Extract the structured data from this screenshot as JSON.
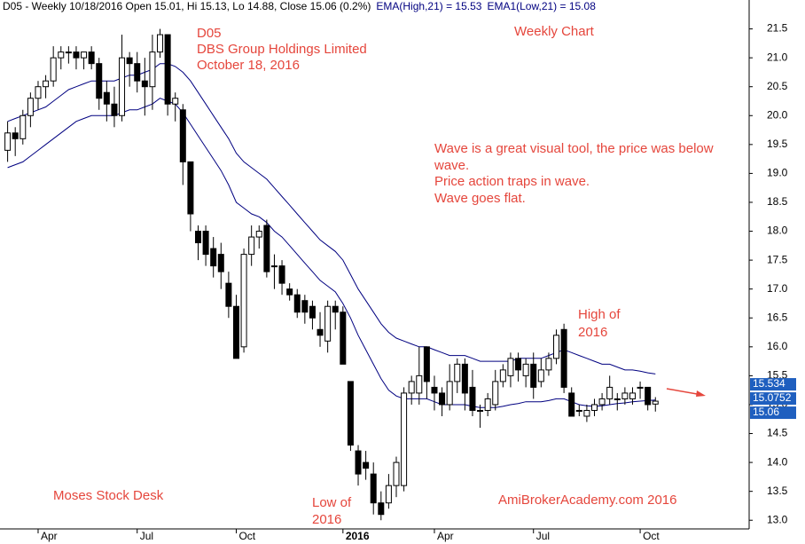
{
  "chart_data": {
    "type": "candlestick",
    "title": "D05 - Weekly 10/18/2016 Open 15.01, Hi 15.13, Lo 14.88, Close 15.06 (0.2%)",
    "ohlc": {
      "open": [
        19.4,
        19.7,
        19.6,
        20.0,
        20.3,
        20.5,
        20.6,
        21.0,
        21.1,
        21.1,
        21.0,
        21.1,
        20.9,
        20.4,
        20.2,
        20.0,
        21.0,
        20.9,
        20.6,
        20.5,
        21.1,
        21.4,
        20.2,
        20.1,
        19.2,
        18.0,
        18.0,
        17.7,
        17.6,
        17.1,
        16.7,
        16.0,
        17.6,
        17.9,
        18.1,
        17.4,
        17.4,
        17.0,
        16.9,
        16.8,
        16.7,
        16.3,
        16.1,
        16.7,
        16.6,
        15.4,
        14.2,
        14.0,
        13.8,
        13.3,
        13.3,
        13.6,
        13.6,
        15.2,
        15.2,
        16.0,
        15.3,
        15.2,
        15.0,
        15.4,
        15.7,
        15.3,
        14.9,
        14.9,
        15.0,
        15.4,
        15.5,
        15.8,
        15.5,
        15.7,
        15.4,
        15.6,
        15.8,
        16.3,
        15.2,
        14.9,
        14.8,
        14.9,
        15.0,
        15.1,
        15.1,
        15.1,
        15.1,
        15.3,
        15.3,
        15.01
      ],
      "high": [
        19.9,
        19.8,
        20.1,
        20.4,
        20.6,
        20.7,
        21.2,
        21.2,
        21.2,
        21.2,
        21.1,
        21.2,
        21.0,
        20.6,
        20.5,
        21.4,
        21.1,
        21.1,
        21.0,
        21.4,
        21.5,
        21.4,
        20.4,
        20.2,
        19.2,
        18.1,
        18.1,
        17.9,
        17.8,
        17.3,
        16.9,
        17.7,
        18.1,
        18.1,
        18.2,
        17.6,
        17.5,
        17.1,
        17.0,
        16.9,
        16.8,
        16.6,
        16.8,
        16.8,
        16.7,
        15.4,
        14.3,
        14.2,
        14.0,
        13.5,
        13.8,
        14.1,
        15.3,
        15.5,
        16.0,
        16.0,
        15.5,
        15.3,
        15.7,
        15.8,
        15.8,
        15.6,
        15.0,
        15.2,
        15.6,
        15.7,
        15.9,
        15.9,
        15.8,
        15.9,
        15.8,
        15.9,
        16.3,
        16.4,
        15.3,
        15.0,
        15.0,
        15.1,
        15.2,
        15.5,
        15.2,
        15.3,
        15.3,
        15.4,
        15.3,
        15.13
      ],
      "low": [
        19.2,
        19.3,
        19.5,
        19.8,
        20.1,
        20.3,
        20.5,
        20.8,
        20.9,
        20.8,
        20.8,
        20.8,
        20.1,
        19.9,
        19.8,
        19.9,
        20.5,
        20.4,
        20.0,
        20.1,
        21.0,
        20.0,
        19.9,
        18.8,
        18.0,
        17.5,
        17.4,
        17.2,
        17.0,
        16.5,
        15.8,
        15.9,
        17.4,
        17.7,
        17.2,
        17.0,
        16.9,
        16.8,
        16.5,
        16.4,
        16.3,
        16.0,
        15.9,
        16.3,
        15.7,
        14.2,
        13.6,
        13.7,
        13.1,
        13.0,
        13.2,
        13.4,
        13.5,
        15.0,
        15.0,
        15.1,
        14.9,
        14.8,
        14.9,
        15.2,
        14.9,
        14.8,
        14.6,
        14.8,
        14.9,
        15.3,
        15.3,
        15.4,
        15.3,
        15.1,
        15.3,
        15.5,
        15.7,
        15.2,
        14.8,
        14.8,
        14.7,
        14.8,
        14.9,
        15.0,
        14.9,
        15.0,
        15.0,
        15.1,
        14.9,
        14.88
      ],
      "close": [
        19.7,
        19.6,
        20.0,
        20.3,
        20.5,
        20.6,
        21.0,
        21.1,
        21.1,
        21.0,
        21.1,
        20.9,
        20.3,
        20.2,
        20.0,
        21.0,
        20.9,
        20.6,
        20.5,
        21.1,
        21.4,
        20.2,
        20.3,
        19.2,
        18.3,
        17.8,
        17.6,
        17.4,
        17.3,
        16.7,
        15.8,
        17.6,
        17.9,
        18.0,
        17.3,
        17.4,
        17.1,
        16.9,
        16.6,
        16.6,
        16.5,
        16.2,
        16.7,
        16.6,
        15.7,
        14.3,
        13.8,
        13.9,
        13.3,
        13.1,
        13.6,
        14.0,
        15.2,
        15.4,
        15.5,
        15.4,
        15.2,
        15.0,
        15.4,
        15.7,
        15.2,
        14.9,
        14.9,
        15.1,
        15.4,
        15.6,
        15.8,
        15.6,
        15.7,
        15.3,
        15.6,
        15.8,
        16.2,
        15.3,
        14.8,
        14.9,
        14.9,
        15.0,
        15.1,
        15.3,
        15.1,
        15.2,
        15.2,
        15.3,
        15.0,
        15.06
      ]
    },
    "series": [
      {
        "name": "EMA(High,21) = 15.53",
        "color": "#000080",
        "values": [
          19.9,
          19.95,
          20.0,
          20.05,
          20.1,
          20.15,
          20.25,
          20.35,
          20.45,
          20.5,
          20.55,
          20.6,
          20.6,
          20.6,
          20.6,
          20.65,
          20.7,
          20.7,
          20.75,
          20.8,
          20.9,
          20.9,
          20.85,
          20.75,
          20.6,
          20.4,
          20.2,
          20.0,
          19.8,
          19.6,
          19.35,
          19.2,
          19.1,
          19.0,
          18.9,
          18.75,
          18.6,
          18.45,
          18.3,
          18.15,
          18.0,
          17.85,
          17.75,
          17.65,
          17.5,
          17.25,
          17.0,
          16.8,
          16.6,
          16.4,
          16.25,
          16.15,
          16.1,
          16.05,
          16.0,
          16.0,
          15.95,
          15.9,
          15.85,
          15.85,
          15.85,
          15.8,
          15.75,
          15.75,
          15.75,
          15.75,
          15.75,
          15.8,
          15.8,
          15.8,
          15.8,
          15.85,
          15.9,
          15.95,
          15.9,
          15.85,
          15.8,
          15.75,
          15.7,
          15.7,
          15.65,
          15.6,
          15.6,
          15.58,
          15.55,
          15.53
        ]
      },
      {
        "name": "EMA1(Low,21) = 15.08",
        "color": "#000080",
        "values": [
          19.1,
          19.15,
          19.2,
          19.3,
          19.4,
          19.5,
          19.6,
          19.7,
          19.8,
          19.9,
          19.95,
          20.0,
          20.0,
          20.0,
          20.0,
          20.05,
          20.1,
          20.1,
          20.15,
          20.2,
          20.3,
          20.25,
          20.2,
          20.05,
          19.85,
          19.65,
          19.45,
          19.25,
          19.05,
          18.8,
          18.5,
          18.4,
          18.3,
          18.25,
          18.15,
          18.0,
          17.9,
          17.75,
          17.6,
          17.45,
          17.3,
          17.15,
          17.05,
          16.95,
          16.75,
          16.5,
          16.2,
          15.95,
          15.7,
          15.45,
          15.25,
          15.15,
          15.1,
          15.1,
          15.1,
          15.1,
          15.05,
          15.0,
          15.0,
          15.0,
          15.0,
          14.97,
          14.95,
          14.95,
          14.95,
          14.97,
          15.0,
          15.02,
          15.05,
          15.05,
          15.05,
          15.07,
          15.1,
          15.1,
          15.05,
          15.0,
          14.98,
          14.97,
          14.98,
          15.0,
          15.02,
          15.03,
          15.05,
          15.06,
          15.07,
          15.08
        ]
      }
    ],
    "last_values": [
      15.534,
      15.0752,
      15.06
    ],
    "xlim": [
      -1,
      97.3
    ],
    "xticks": [
      {
        "value": 4,
        "label": "Apr"
      },
      {
        "value": 17,
        "label": "Jul"
      },
      {
        "value": 30,
        "label": "Oct"
      },
      {
        "value": 44,
        "label": "2016"
      },
      {
        "value": 56,
        "label": "Apr"
      },
      {
        "value": 69,
        "label": "Jul"
      },
      {
        "value": 83,
        "label": "Oct"
      }
    ],
    "ylim": [
      12.85,
      22.0
    ],
    "yticks": [
      {
        "value": 13,
        "label": "13.0"
      },
      13.5,
      {
        "value": 14,
        "label": "14.0"
      },
      14.5,
      {
        "value": 15,
        "label": "15.0"
      },
      15.5,
      {
        "value": 16,
        "label": "16.0"
      },
      16.5,
      {
        "value": 17,
        "label": "17.0"
      },
      17.5,
      {
        "value": 18,
        "label": "18.0"
      },
      18.5,
      {
        "value": 19,
        "label": "19.0"
      },
      19.5,
      {
        "value": 20,
        "label": "20.0"
      },
      20.5,
      {
        "value": 21,
        "label": "21.0"
      },
      21.5
    ],
    "annotations": [
      "D05",
      "DBS Group Holdings Limited",
      "October 18, 2016",
      "Weekly Chart",
      "Wave is a great visual tool, the price was below",
      "wave.",
      "Price action traps in wave.",
      "Wave goes flat.",
      "High of",
      "2016",
      "Moses Stock Desk",
      "Low of",
      "2016",
      "AmiBrokerAcademy.com  2016"
    ]
  }
}
